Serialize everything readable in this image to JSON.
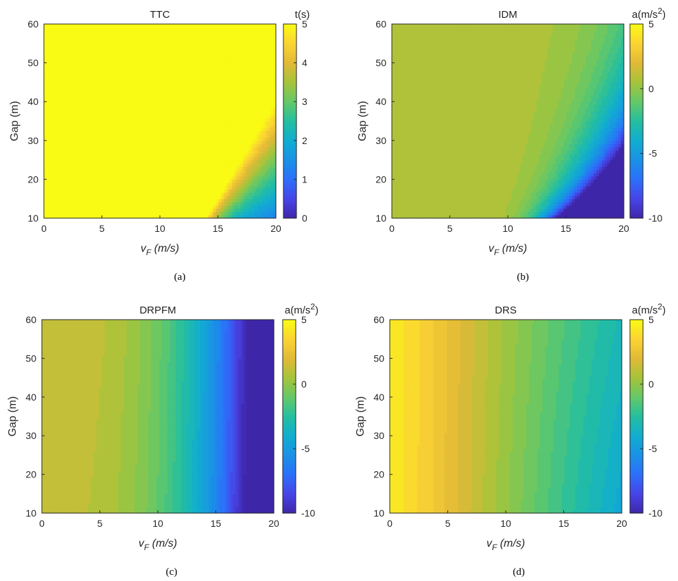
{
  "chart_data": [
    {
      "panel": "(a)",
      "type": "heatmap",
      "title": "TTC",
      "xlabel": "v_F (m/s)",
      "ylabel": "Gap (m)",
      "xlim": [
        0,
        20
      ],
      "ylim": [
        10,
        60
      ],
      "x_ticks": [
        0,
        5,
        10,
        15,
        20
      ],
      "y_ticks": [
        10,
        20,
        30,
        40,
        50,
        60
      ],
      "colorbar": {
        "label": "t(s)",
        "range": [
          0,
          5
        ],
        "ticks": [
          0,
          1,
          2,
          3,
          4,
          5
        ]
      },
      "function": "TTC = Gap / (v_F - 12), clipped to [0,5]; leader speed ~12 m/s"
    },
    {
      "panel": "(b)",
      "type": "heatmap",
      "title": "IDM",
      "xlabel": "v_F (m/s)",
      "ylabel": "Gap (m)",
      "xlim": [
        0,
        20
      ],
      "ylim": [
        10,
        60
      ],
      "x_ticks": [
        0,
        5,
        10,
        15,
        20
      ],
      "y_ticks": [
        10,
        20,
        30,
        40,
        50,
        60
      ],
      "colorbar": {
        "label": "a(m/s²)",
        "range": [
          -10,
          5
        ],
        "ticks": [
          -10,
          -5,
          0,
          5
        ]
      },
      "function": "IDM acceleration, near 0.6 at low speed, strongly negative at high speed small gap"
    },
    {
      "panel": "(c)",
      "type": "heatmap",
      "title": "DRPFM",
      "xlabel": "v_F (m/s)",
      "ylabel": "Gap (m)",
      "xlim": [
        0,
        20
      ],
      "ylim": [
        10,
        60
      ],
      "x_ticks": [
        0,
        5,
        10,
        15,
        20
      ],
      "y_ticks": [
        10,
        20,
        30,
        40,
        50,
        60
      ],
      "colorbar": {
        "label": "a(m/s²)",
        "range": [
          -10,
          5
        ],
        "ticks": [
          -10,
          -5,
          0,
          5
        ]
      },
      "function": "DRPFM acceleration, ~1.5 at low speed decreasing to -10 near 20 m/s"
    },
    {
      "panel": "(d)",
      "type": "heatmap",
      "title": "DRS",
      "xlabel": "v_F (m/s)",
      "ylabel": "Gap (m)",
      "xlim": [
        0,
        20
      ],
      "ylim": [
        10,
        60
      ],
      "x_ticks": [
        0,
        5,
        10,
        15,
        20
      ],
      "y_ticks": [
        10,
        20,
        30,
        40,
        50,
        60
      ],
      "colorbar": {
        "label": "a(m/s²)",
        "range": [
          -10,
          5
        ],
        "ticks": [
          -10,
          -5,
          0,
          5
        ]
      },
      "function": "DRS acceleration, ~4.5 at v=0, peak ~3 at v~4, decreasing to ~-6 at v=20"
    }
  ]
}
